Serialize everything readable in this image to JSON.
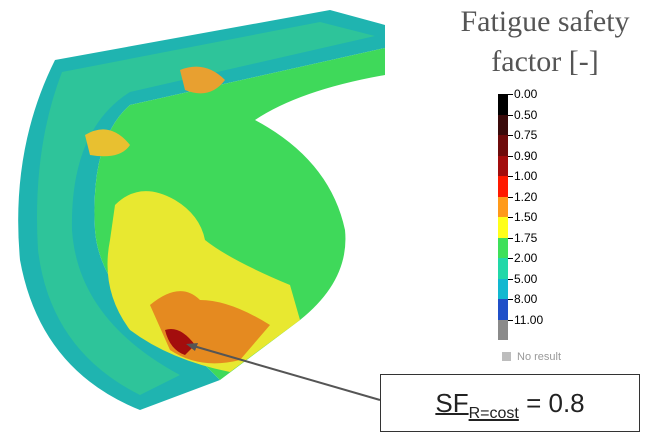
{
  "title": "Fatigue safety factor [-]",
  "legend": {
    "entries": [
      {
        "label": "0.00",
        "color": "#000000"
      },
      {
        "label": "0.50",
        "color": "#3a0a0a"
      },
      {
        "label": "0.75",
        "color": "#6e0b0b"
      },
      {
        "label": "0.90",
        "color": "#a30d0d"
      },
      {
        "label": "1.00",
        "color": "#ff1a00"
      },
      {
        "label": "1.20",
        "color": "#ff9a1a"
      },
      {
        "label": "1.50",
        "color": "#ffff1a"
      },
      {
        "label": "1.75",
        "color": "#3fe05a"
      },
      {
        "label": "2.00",
        "color": "#22d8a8"
      },
      {
        "label": "5.00",
        "color": "#12b8d0"
      },
      {
        "label": "8.00",
        "color": "#2050c8"
      },
      {
        "label": "11.00",
        "color": "#8a8a8a"
      }
    ],
    "no_result": {
      "label": "No result",
      "color": "#bdbdbd"
    }
  },
  "annotation": {
    "symbol": "SF",
    "subscript": "R=cost",
    "value": "= 0.8"
  }
}
